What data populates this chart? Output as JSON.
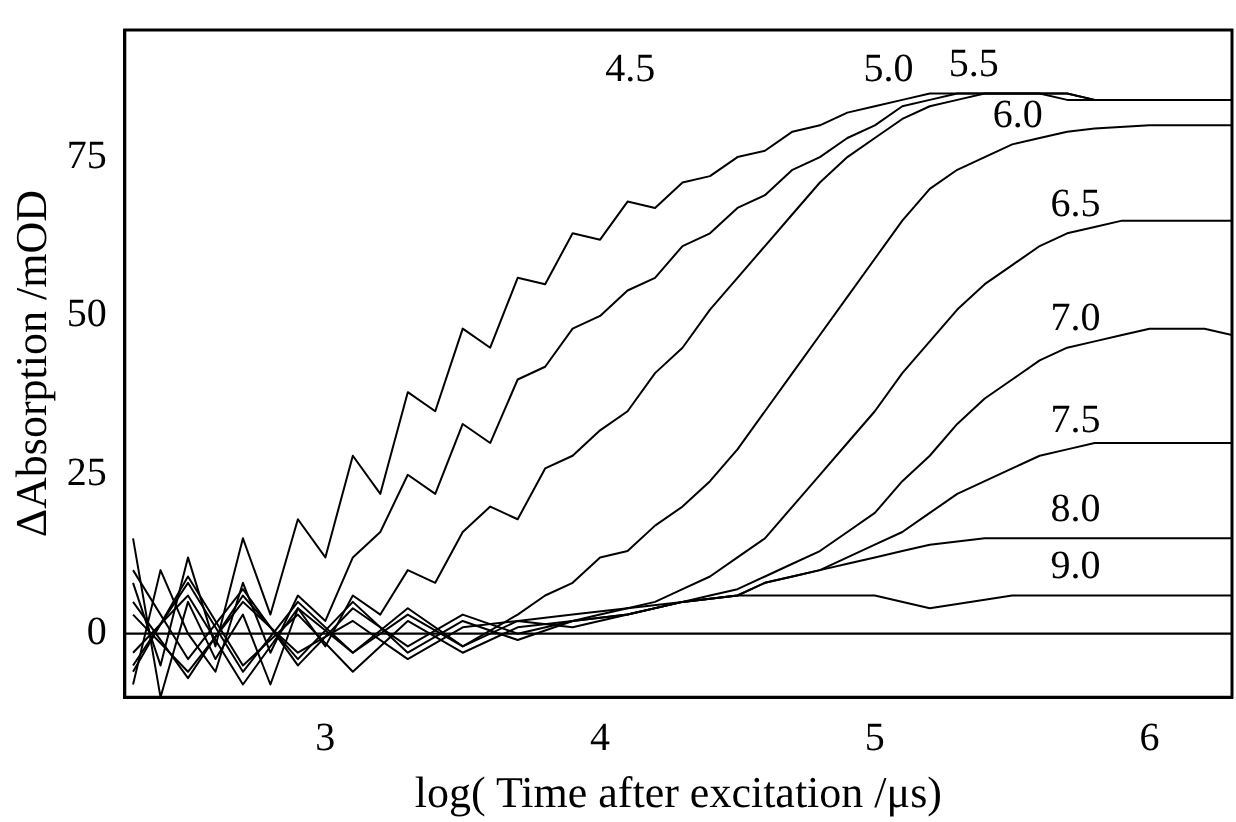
{
  "chart_data": {
    "type": "line",
    "xlabel": "log( Time after excitation /μs)",
    "ylabel": "ΔAbsorption /mOD",
    "xlim": [
      2.27,
      6.3
    ],
    "ylim": [
      -10,
      95
    ],
    "xticks": [
      3,
      4,
      5,
      6
    ],
    "yticks": [
      0,
      25,
      50,
      75
    ],
    "grid": false,
    "legend": false,
    "marker": "none",
    "line_style": "solid",
    "series": [
      {
        "name": "4.5",
        "color": "#000000",
        "x": [
          2.3,
          2.4,
          2.5,
          2.6,
          2.7,
          2.8,
          2.9,
          3.0,
          3.1,
          3.2,
          3.3,
          3.4,
          3.5,
          3.6,
          3.7,
          3.8,
          3.9,
          4.0,
          4.1,
          4.2,
          4.3,
          4.4,
          4.5,
          4.6,
          4.7,
          4.8,
          4.9,
          5.0,
          5.1,
          5.2,
          5.3,
          5.4,
          5.5,
          5.6,
          5.7,
          5.8,
          5.9,
          6.0,
          6.1,
          6.2,
          6.3
        ],
        "values": [
          8,
          -5,
          12,
          -2,
          15,
          3,
          18,
          12,
          28,
          22,
          38,
          35,
          48,
          45,
          56,
          55,
          63,
          62,
          68,
          67,
          71,
          72,
          75,
          76,
          79,
          80,
          82,
          83,
          84,
          85,
          85,
          85,
          85,
          85,
          84,
          84,
          84,
          84,
          84,
          84,
          84
        ]
      },
      {
        "name": "5.0",
        "color": "#000000",
        "x": [
          2.3,
          2.4,
          2.5,
          2.6,
          2.7,
          2.8,
          2.9,
          3.0,
          3.1,
          3.2,
          3.3,
          3.4,
          3.5,
          3.6,
          3.7,
          3.8,
          3.9,
          4.0,
          4.1,
          4.2,
          4.3,
          4.4,
          4.5,
          4.6,
          4.7,
          4.8,
          4.9,
          5.0,
          5.1,
          5.2,
          5.3,
          5.4,
          5.5,
          5.6,
          5.7,
          5.8,
          5.9,
          6.0,
          6.1,
          6.2,
          6.3
        ],
        "values": [
          -8,
          10,
          0,
          -6,
          8,
          -3,
          6,
          2,
          12,
          16,
          25,
          22,
          33,
          30,
          40,
          42,
          48,
          50,
          54,
          56,
          61,
          63,
          67,
          69,
          73,
          75,
          78,
          80,
          83,
          84,
          85,
          85,
          85,
          85,
          85,
          84,
          84,
          84,
          84,
          84,
          84
        ]
      },
      {
        "name": "5.5",
        "color": "#000000",
        "x": [
          2.3,
          2.4,
          2.5,
          2.6,
          2.7,
          2.8,
          2.9,
          3.0,
          3.1,
          3.2,
          3.3,
          3.4,
          3.5,
          3.6,
          3.7,
          3.8,
          3.9,
          4.0,
          4.1,
          4.2,
          4.3,
          4.4,
          4.5,
          4.6,
          4.7,
          4.8,
          4.9,
          5.0,
          5.1,
          5.2,
          5.3,
          5.4,
          5.5,
          5.6,
          5.7,
          5.8,
          5.9,
          6.0,
          6.1,
          6.2,
          6.3
        ],
        "values": [
          15,
          -10,
          5,
          -4,
          3,
          -8,
          4,
          -2,
          6,
          3,
          10,
          8,
          16,
          20,
          18,
          26,
          28,
          32,
          35,
          41,
          45,
          51,
          56,
          61,
          66,
          71,
          75,
          78,
          81,
          83,
          84,
          85,
          85,
          85,
          85,
          84,
          84,
          84,
          84,
          84,
          84
        ]
      },
      {
        "name": "6.0",
        "color": "#000000",
        "x": [
          2.3,
          2.5,
          2.7,
          2.9,
          3.1,
          3.3,
          3.5,
          3.7,
          3.8,
          3.9,
          4.0,
          4.1,
          4.2,
          4.3,
          4.4,
          4.5,
          4.6,
          4.7,
          4.8,
          4.9,
          5.0,
          5.1,
          5.2,
          5.3,
          5.4,
          5.5,
          5.6,
          5.7,
          5.8,
          6.0,
          6.3
        ],
        "values": [
          -5,
          8,
          -6,
          5,
          -3,
          4,
          -2,
          3,
          6,
          8,
          12,
          13,
          17,
          20,
          24,
          29,
          35,
          41,
          47,
          53,
          59,
          65,
          70,
          73,
          75,
          77,
          78,
          79,
          79.5,
          80,
          80
        ]
      },
      {
        "name": "6.5",
        "color": "#000000",
        "x": [
          2.3,
          2.5,
          2.7,
          2.9,
          3.1,
          3.3,
          3.5,
          3.7,
          3.9,
          4.0,
          4.1,
          4.2,
          4.3,
          4.4,
          4.5,
          4.6,
          4.7,
          4.8,
          4.9,
          5.0,
          5.1,
          5.2,
          5.3,
          5.4,
          5.5,
          5.6,
          5.7,
          5.8,
          5.9,
          6.0,
          6.3
        ],
        "values": [
          5,
          -7,
          6,
          -4,
          5,
          -3,
          2,
          -1,
          2,
          3,
          4,
          5,
          7,
          9,
          12,
          15,
          20,
          25,
          30,
          35,
          41,
          46,
          51,
          55,
          58,
          61,
          63,
          64,
          65,
          65,
          65
        ]
      },
      {
        "name": "7.0",
        "color": "#000000",
        "x": [
          2.3,
          2.5,
          2.7,
          2.9,
          3.1,
          3.3,
          3.5,
          3.7,
          3.9,
          4.1,
          4.3,
          4.4,
          4.5,
          4.6,
          4.7,
          4.8,
          4.9,
          5.0,
          5.1,
          5.2,
          5.3,
          5.4,
          5.5,
          5.6,
          5.7,
          5.8,
          5.9,
          6.0,
          6.2,
          6.3
        ],
        "values": [
          -6,
          9,
          -5,
          3,
          -6,
          2,
          -3,
          1,
          2,
          3,
          5,
          6,
          7,
          9,
          11,
          13,
          16,
          19,
          24,
          28,
          33,
          37,
          40,
          43,
          45,
          46,
          47,
          48,
          48,
          47
        ]
      },
      {
        "name": "7.5",
        "color": "#000000",
        "x": [
          2.3,
          2.5,
          2.7,
          2.9,
          3.1,
          3.3,
          3.5,
          3.7,
          3.9,
          4.1,
          4.3,
          4.5,
          4.6,
          4.7,
          4.8,
          4.9,
          5.0,
          5.1,
          5.2,
          5.3,
          5.4,
          5.5,
          5.6,
          5.7,
          5.8,
          6.0,
          6.3
        ],
        "values": [
          10,
          -4,
          7,
          -5,
          4,
          -2,
          3,
          0,
          2,
          3,
          5,
          6,
          8,
          9,
          10,
          12,
          14,
          16,
          19,
          22,
          24,
          26,
          28,
          29,
          30,
          30,
          30
        ]
      },
      {
        "name": "8.0",
        "color": "#000000",
        "x": [
          2.3,
          2.5,
          2.7,
          2.9,
          3.1,
          3.3,
          3.5,
          3.7,
          3.9,
          4.1,
          4.3,
          4.5,
          4.6,
          4.7,
          4.8,
          4.9,
          5.0,
          5.1,
          5.2,
          5.4,
          5.6,
          6.0,
          6.3
        ],
        "values": [
          -3,
          6,
          -8,
          4,
          -3,
          3,
          -2,
          2,
          1,
          3,
          5,
          6,
          8,
          9,
          10,
          11,
          12,
          13,
          14,
          15,
          15,
          15,
          15
        ]
      },
      {
        "name": "9.0",
        "color": "#000000",
        "x": [
          2.3,
          2.5,
          2.7,
          2.9,
          3.1,
          3.3,
          3.5,
          3.7,
          3.9,
          4.1,
          4.3,
          4.5,
          5.0,
          5.2,
          5.5,
          6.0,
          6.3
        ],
        "values": [
          3,
          -6,
          5,
          -3,
          2,
          -4,
          1,
          2,
          3,
          4,
          5,
          6,
          6,
          4,
          6,
          6,
          6
        ]
      }
    ],
    "ref_lines": [
      {
        "axis": "y",
        "value": 0,
        "color": "#000000"
      }
    ]
  }
}
